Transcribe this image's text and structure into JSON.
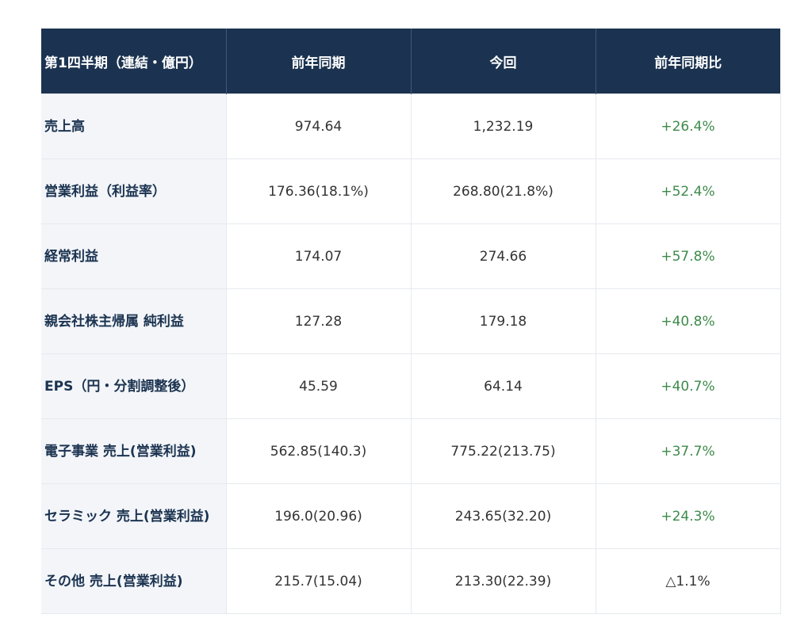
{
  "header": {
    "col0": "第1四半期（連結・億円）",
    "col1": "前年同期",
    "col2": "今回",
    "col3": "前年同期比"
  },
  "rows": [
    {
      "label": "売上高",
      "prev": "974.64",
      "curr": "1,232.19",
      "change": "+26.4%"
    },
    {
      "label": "営業利益（利益率）",
      "prev": "176.36(18.1%)",
      "curr": "268.80(21.8%)",
      "change": "+52.4%"
    },
    {
      "label": "経常利益",
      "prev": "174.07",
      "curr": "274.66",
      "change": "+57.8%"
    },
    {
      "label": "親会社株主帰属 純利益",
      "prev": "127.28",
      "curr": "179.18",
      "change": "+40.8%"
    },
    {
      "label": "EPS（円・分割調整後）",
      "prev": "45.59",
      "curr": "64.14",
      "change": "+40.7%"
    },
    {
      "label": "電子事業 売上(営業利益)",
      "prev": "562.85(140.3)",
      "curr": "775.22(213.75)",
      "change": "+37.7%"
    },
    {
      "label": "セラミック 売上(営業利益)",
      "prev": "196.0(20.96)",
      "curr": "243.65(32.20)",
      "change": "+24.3%"
    },
    {
      "label": "その他 売上(営業利益)",
      "prev": "215.7(15.04)",
      "curr": "213.30(22.39)",
      "change": "△1.1%"
    }
  ],
  "colors": {
    "header_bg": "#1b3350",
    "label_bg": "#f3f5f9",
    "positive": "#3d8a4a"
  }
}
